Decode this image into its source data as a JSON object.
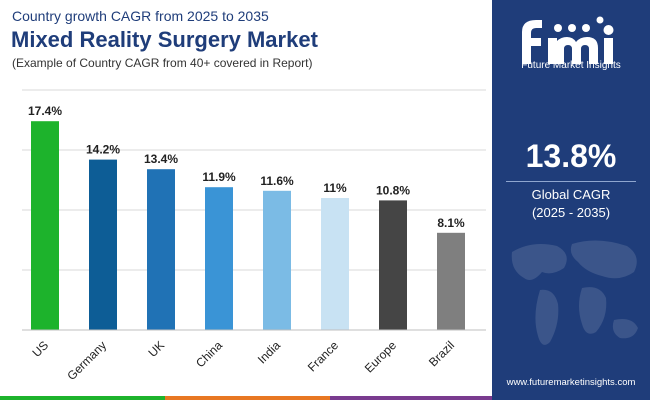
{
  "header": {
    "subtitle": "Country growth CAGR from 2025 to 2035",
    "title": "Mixed Reality Surgery Market",
    "note": "(Example of Country CAGR from 40+ covered in Report)"
  },
  "chart_data": {
    "type": "bar",
    "title": "Mixed Reality Surgery Market",
    "subtitle": "Country growth CAGR from 2025 to 2035",
    "categories": [
      "US",
      "Germany",
      "UK",
      "China",
      "India",
      "France",
      "Europe",
      "Brazil"
    ],
    "values": [
      17.4,
      14.2,
      13.4,
      11.9,
      11.6,
      11,
      10.8,
      8.1
    ],
    "value_labels": [
      "17.4%",
      "14.2%",
      "13.4%",
      "11.9%",
      "11.6%",
      "11%",
      "10.8%",
      "8.1%"
    ],
    "colors": [
      "#1db32c",
      "#0d5d96",
      "#2072b5",
      "#3a94d6",
      "#7bbbe5",
      "#c8e2f3",
      "#454545",
      "#7f7f7f"
    ],
    "xlabel": "",
    "ylabel": "",
    "ylim": [
      0,
      20
    ],
    "yticks": [
      0,
      5,
      10,
      15,
      20
    ],
    "grid": true,
    "legend": "none"
  },
  "sidebar": {
    "logo_text": "Future Market Insights",
    "global_value": "13.8%",
    "global_label": "Global CAGR",
    "global_range": "(2025 - 2035)",
    "website": "www.futuremarketinsights.com",
    "accent": "#1f3d7a"
  },
  "bottom_bar_colors": [
    "#1db32c",
    "#e87722",
    "#7a3b8f",
    "#1f3d7a"
  ]
}
